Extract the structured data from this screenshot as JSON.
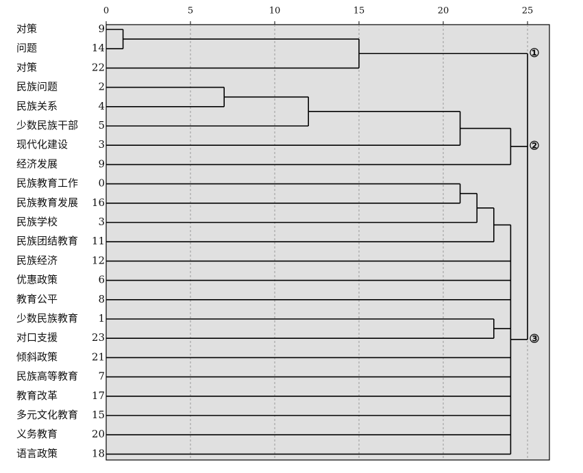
{
  "chart_data": {
    "type": "dendrogram",
    "xlim": [
      0,
      26.3
    ],
    "xticks": [
      0,
      5,
      10,
      15,
      20,
      25
    ],
    "grid": true,
    "color": "#000000",
    "background": "#e0e0e0",
    "leaves": [
      {
        "label": "对策",
        "id": 9
      },
      {
        "label": "问题",
        "id": 14
      },
      {
        "label": "对策",
        "id": 22
      },
      {
        "label": "民族问题",
        "id": 2
      },
      {
        "label": "民族关系",
        "id": 4
      },
      {
        "label": "少数民族干部",
        "id": 5
      },
      {
        "label": "现代化建设",
        "id": 3
      },
      {
        "label": "经济发展",
        "id": 9
      },
      {
        "label": "民族教育工作",
        "id": 0
      },
      {
        "label": "民族教育发展",
        "id": 16
      },
      {
        "label": "民族学校",
        "id": 3
      },
      {
        "label": "民族团结教育",
        "id": 11
      },
      {
        "label": "民族经济",
        "id": 12
      },
      {
        "label": "优惠政策",
        "id": 6
      },
      {
        "label": "教育公平",
        "id": 8
      },
      {
        "label": "少数民族教育",
        "id": 1
      },
      {
        "label": "对口支援",
        "id": 23
      },
      {
        "label": "倾斜政策",
        "id": 21
      },
      {
        "label": "民族高等教育",
        "id": 7
      },
      {
        "label": "教育改革",
        "id": 17
      },
      {
        "label": "多元文化教育",
        "id": 15
      },
      {
        "label": "义务教育",
        "id": 20
      },
      {
        "label": "语言政策",
        "id": 18
      }
    ],
    "merges": [
      {
        "height": 1,
        "children": [
          {
            "leaf": 0
          },
          {
            "leaf": 1
          }
        ]
      },
      {
        "height": 15,
        "children": [
          {
            "merge": 0
          },
          {
            "leaf": 2
          }
        ]
      },
      {
        "height": 7,
        "children": [
          {
            "leaf": 3
          },
          {
            "leaf": 4
          }
        ]
      },
      {
        "height": 12,
        "children": [
          {
            "merge": 2
          },
          {
            "leaf": 5
          }
        ]
      },
      {
        "height": 21,
        "children": [
          {
            "merge": 3
          },
          {
            "leaf": 6
          }
        ]
      },
      {
        "height": 24,
        "children": [
          {
            "merge": 4
          },
          {
            "leaf": 7
          }
        ]
      },
      {
        "height": 21,
        "children": [
          {
            "leaf": 8
          },
          {
            "leaf": 9
          }
        ]
      },
      {
        "height": 22,
        "children": [
          {
            "merge": 6
          },
          {
            "leaf": 10
          }
        ]
      },
      {
        "height": 23,
        "children": [
          {
            "merge": 7
          },
          {
            "leaf": 11
          }
        ]
      },
      {
        "height": 23,
        "children": [
          {
            "leaf": 15
          },
          {
            "leaf": 16
          }
        ]
      },
      {
        "height": 24,
        "children": [
          {
            "merge": 8
          },
          {
            "leaf": 12
          },
          {
            "leaf": 13
          },
          {
            "leaf": 14
          },
          {
            "merge": 9
          },
          {
            "leaf": 17
          },
          {
            "leaf": 18
          },
          {
            "leaf": 19
          },
          {
            "leaf": 20
          },
          {
            "leaf": 21
          },
          {
            "leaf": 22
          }
        ]
      },
      {
        "height": 25,
        "children": [
          {
            "merge": 1
          },
          {
            "merge": 5
          },
          {
            "merge": 10
          }
        ],
        "labels": [
          "①",
          "②",
          "③"
        ]
      }
    ]
  }
}
